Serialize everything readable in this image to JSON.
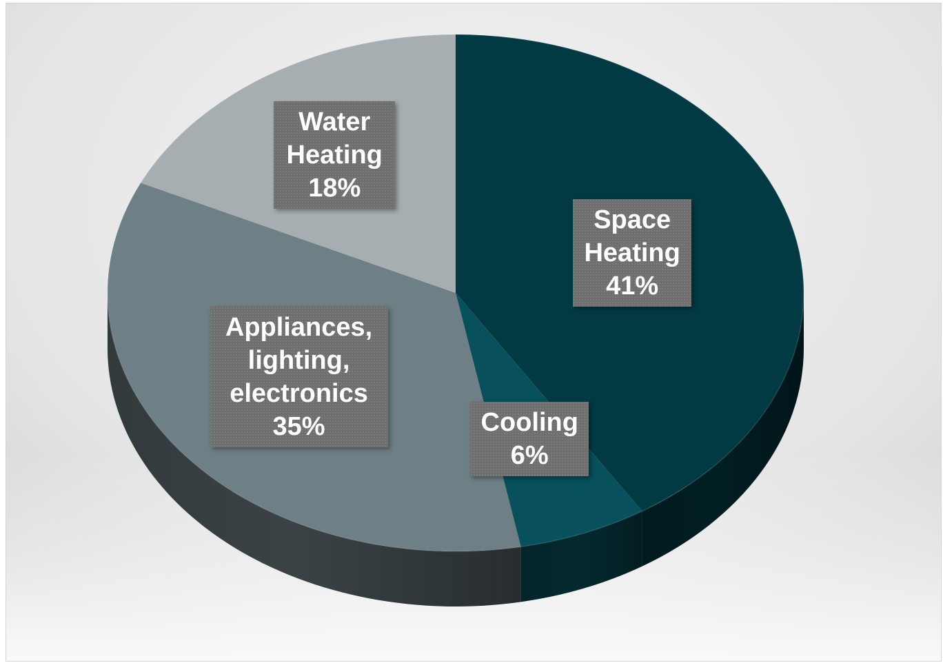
{
  "chart_data": {
    "type": "pie",
    "title": "",
    "slices": [
      {
        "label_lines": [
          "Space",
          "Heating"
        ],
        "value": 41,
        "value_label": "41%",
        "color": "#023a44"
      },
      {
        "label_lines": [
          "Cooling"
        ],
        "value": 6,
        "value_label": "6%",
        "color": "#07505c"
      },
      {
        "label_lines": [
          "Appliances,",
          "lighting,",
          "electronics"
        ],
        "value": 35,
        "value_label": "35%",
        "color": "#6e7f85"
      },
      {
        "label_lines": [
          "Water",
          "Heating"
        ],
        "value": 18,
        "value_label": "18%",
        "color": "#a6aeb1"
      }
    ],
    "start_angle_deg": 0,
    "direction": "clockwise",
    "style": "3d-perspective",
    "legend": "none",
    "data_labels": "inside-boxes"
  }
}
